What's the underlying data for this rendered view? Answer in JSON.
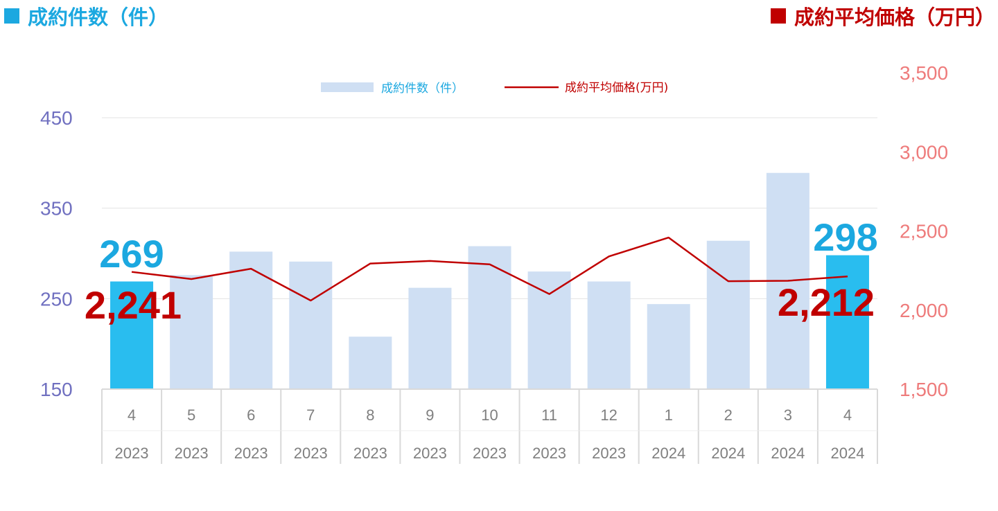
{
  "header": {
    "left_title": "成約件数（件）",
    "right_title": "成約平均価格（万円）"
  },
  "colors": {
    "bar": "#cfdff3",
    "bar_highlight": "#29bdef",
    "line": "#c00000",
    "left_axis": "#7070c0",
    "right_axis": "#ee7b7b",
    "count_label": "#1ca8e0",
    "price_label": "#c00000"
  },
  "chart_data": {
    "type": "bar",
    "categories": [
      "4",
      "5",
      "6",
      "7",
      "8",
      "9",
      "10",
      "11",
      "12",
      "1",
      "2",
      "3",
      "4"
    ],
    "years": [
      "2023",
      "2023",
      "2023",
      "2023",
      "2023",
      "2023",
      "2023",
      "2023",
      "2023",
      "2024",
      "2024",
      "2024",
      "2024"
    ],
    "series": [
      {
        "name": "成約件数（件）",
        "type": "bar",
        "axis": "left",
        "values": [
          269,
          276,
          302,
          291,
          208,
          262,
          308,
          280,
          269,
          244,
          314,
          389,
          298
        ]
      },
      {
        "name": "成約平均価格(万円)",
        "type": "line",
        "axis": "right",
        "values": [
          2241,
          2196,
          2261,
          2060,
          2294,
          2310,
          2289,
          2101,
          2339,
          2458,
          2182,
          2185,
          2212
        ]
      }
    ],
    "highlighted_indices": [
      0,
      12
    ],
    "left_axis": {
      "ticks": [
        "450",
        "350",
        "250",
        "150"
      ],
      "range": [
        150,
        450
      ]
    },
    "right_axis": {
      "ticks": [
        "3,500",
        "3,000",
        "2,500",
        "2,000",
        "1,500"
      ],
      "range": [
        1500,
        3500
      ]
    },
    "annotations": {
      "first_count": "269",
      "first_price": "2,241",
      "last_count": "298",
      "last_price": "2,212"
    },
    "grid": true,
    "legend_position": "top-center"
  }
}
